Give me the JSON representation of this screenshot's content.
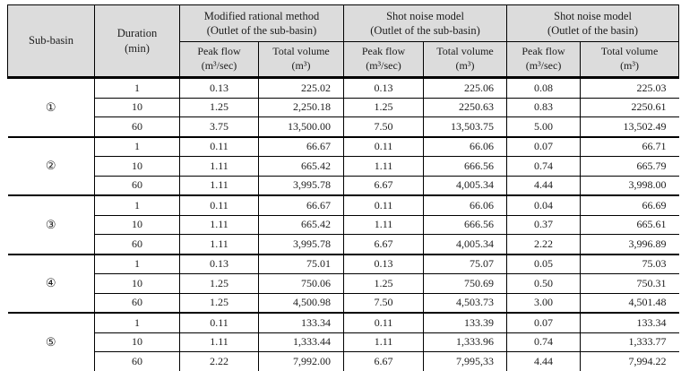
{
  "table": {
    "header": {
      "subbasin": "Sub-basin",
      "duration_line1": "Duration",
      "duration_line2": "(min)",
      "groups": [
        {
          "line1": "Modified rational method",
          "line2": "(Outlet of the sub-basin)"
        },
        {
          "line1": "Shot noise model",
          "line2": "(Outlet of the sub-basin)"
        },
        {
          "line1": "Shot noise model",
          "line2": "(Outlet of the basin)"
        }
      ],
      "peak_flow_line1": "Peak flow",
      "peak_flow_line2": "(m³/sec)",
      "total_volume_line1": "Total volume",
      "total_volume_line2": "(m³)"
    },
    "groups": [
      {
        "label": "①",
        "rows": [
          {
            "duration": "1",
            "values": [
              "0.13",
              "225.02",
              "0.13",
              "225.06",
              "0.08",
              "225.03"
            ]
          },
          {
            "duration": "10",
            "values": [
              "1.25",
              "2,250.18",
              "1.25",
              "2250.63",
              "0.83",
              "2250.61"
            ]
          },
          {
            "duration": "60",
            "values": [
              "3.75",
              "13,500.00",
              "7.50",
              "13,503.75",
              "5.00",
              "13,502.49"
            ]
          }
        ]
      },
      {
        "label": "②",
        "rows": [
          {
            "duration": "1",
            "values": [
              "0.11",
              "66.67",
              "0.11",
              "66.06",
              "0.07",
              "66.71"
            ]
          },
          {
            "duration": "10",
            "values": [
              "1.11",
              "665.42",
              "1.11",
              "666.56",
              "0.74",
              "665.79"
            ]
          },
          {
            "duration": "60",
            "values": [
              "1.11",
              "3,995.78",
              "6.67",
              "4,005.34",
              "4.44",
              "3,998.00"
            ]
          }
        ]
      },
      {
        "label": "③",
        "rows": [
          {
            "duration": "1",
            "values": [
              "0.11",
              "66.67",
              "0.11",
              "66.06",
              "0.04",
              "66.69"
            ]
          },
          {
            "duration": "10",
            "values": [
              "1.11",
              "665.42",
              "1.11",
              "666.56",
              "0.37",
              "665.61"
            ]
          },
          {
            "duration": "60",
            "values": [
              "1.11",
              "3,995.78",
              "6.67",
              "4,005.34",
              "2.22",
              "3,996.89"
            ]
          }
        ]
      },
      {
        "label": "④",
        "rows": [
          {
            "duration": "1",
            "values": [
              "0.13",
              "75.01",
              "0.13",
              "75.07",
              "0.05",
              "75.03"
            ]
          },
          {
            "duration": "10",
            "values": [
              "1.25",
              "750.06",
              "1.25",
              "750.69",
              "0.50",
              "750.31"
            ]
          },
          {
            "duration": "60",
            "values": [
              "1.25",
              "4,500.98",
              "7.50",
              "4,503.73",
              "3.00",
              "4,501.48"
            ]
          }
        ]
      },
      {
        "label": "⑤",
        "rows": [
          {
            "duration": "1",
            "values": [
              "0.11",
              "133.34",
              "0.11",
              "133.39",
              "0.07",
              "133.34"
            ]
          },
          {
            "duration": "10",
            "values": [
              "1.11",
              "1,333.44",
              "1.11",
              "1,333.96",
              "0.74",
              "1,333.77"
            ]
          },
          {
            "duration": "60",
            "values": [
              "2.22",
              "7,992.00",
              "6.67",
              "7,995,33",
              "4.44",
              "7,994.22"
            ]
          }
        ]
      }
    ],
    "colors": {
      "header_bg": "#dcdcdc",
      "border": "#000000",
      "text": "#1c1c1c"
    }
  }
}
